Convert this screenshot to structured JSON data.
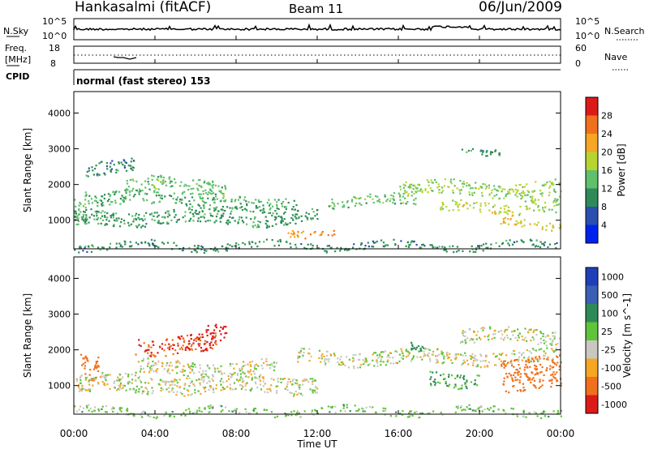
{
  "header": {
    "station": "Hankasalmi (fitACF)",
    "beam": "Beam 11",
    "date": "06/Jun/2009"
  },
  "noise_panel": {
    "left_label": "N.Sky",
    "right_label": "N.Search",
    "left_ticks": [
      "10^5",
      "10^0"
    ],
    "right_ticks": [
      "10^5",
      "10^0"
    ]
  },
  "freq_panel": {
    "left_label_line1": "Freq.",
    "left_label_line2": "[MHz]",
    "right_label": "Nave",
    "left_ticks": [
      "18",
      "8"
    ],
    "right_ticks": [
      "60",
      "0"
    ]
  },
  "cpid": {
    "label": "CPID",
    "mode": "normal (fast stereo) 153"
  },
  "power_panel": {
    "ylabel": "Slant Range [km]",
    "yticks": [
      "1000",
      "2000",
      "3000",
      "4000"
    ],
    "colorbar_label": "Power [dB]",
    "colorbar_ticks": [
      "4",
      "8",
      "12",
      "16",
      "20",
      "24",
      "28"
    ],
    "colorbar_colors": [
      "#0022ee",
      "#2a4fb0",
      "#2e8b57",
      "#5fc16b",
      "#b8d430",
      "#f5a623",
      "#f0701c",
      "#dd1a1a"
    ]
  },
  "velocity_panel": {
    "ylabel": "Slant Range [km]",
    "yticks": [
      "1000",
      "2000",
      "3000",
      "4000"
    ],
    "colorbar_label": "Velocity [m s^-1]",
    "colorbar_ticks": [
      "1000",
      "500",
      "100",
      "25",
      "-25",
      "-100",
      "-500",
      "-1000"
    ],
    "colorbar_colors": [
      "#1f3fb8",
      "#3a5fb4",
      "#2e8b57",
      "#5fc43a",
      "#c8c8c0",
      "#f5a623",
      "#f0701c",
      "#dd1a1a"
    ]
  },
  "xaxis": {
    "label": "Time UT",
    "ticks": [
      "00:00",
      "04:00",
      "08:00",
      "12:00",
      "16:00",
      "20:00",
      "00:00"
    ]
  },
  "chart_data": [
    {
      "type": "heatmap",
      "title": "Power",
      "xlabel": "Time UT",
      "ylabel": "Slant Range [km]",
      "xlim": [
        0,
        24
      ],
      "ylim": [
        200,
        4600
      ],
      "value_range": [
        0,
        30
      ],
      "units": "dB",
      "bands": [
        {
          "t0": 0.0,
          "t1": 0.6,
          "r0": 900,
          "r1": 1600,
          "level": 12
        },
        {
          "t0": 0.5,
          "t1": 3.5,
          "r0": 1500,
          "r1": 1900,
          "level": 10
        },
        {
          "t0": 0.5,
          "t1": 3.0,
          "r0": 2300,
          "r1": 2700,
          "level": 8
        },
        {
          "t0": 2.5,
          "t1": 7.5,
          "r0": 1700,
          "r1": 2200,
          "level": 12
        },
        {
          "t0": 3.5,
          "t1": 8.0,
          "r0": 1400,
          "r1": 1700,
          "level": 10
        },
        {
          "t0": 0.0,
          "t1": 12.0,
          "r0": 900,
          "r1": 1300,
          "level": 9
        },
        {
          "t0": 8.0,
          "t1": 11.0,
          "r0": 1300,
          "r1": 1700,
          "level": 10
        },
        {
          "t0": 10.5,
          "t1": 13.0,
          "r0": 600,
          "r1": 800,
          "level": 22
        },
        {
          "t0": 12.5,
          "t1": 17.0,
          "r0": 1400,
          "r1": 1700,
          "level": 12
        },
        {
          "t0": 16.0,
          "t1": 24.0,
          "r0": 1700,
          "r1": 2100,
          "level": 14
        },
        {
          "t0": 18.0,
          "t1": 22.0,
          "r0": 1200,
          "r1": 1500,
          "level": 16
        },
        {
          "t0": 21.0,
          "t1": 24.0,
          "r0": 800,
          "r1": 1000,
          "level": 18
        },
        {
          "t0": 22.0,
          "t1": 24.0,
          "r0": 1300,
          "r1": 1800,
          "level": 14
        },
        {
          "t0": 19.0,
          "t1": 21.0,
          "r0": 2900,
          "r1": 3100,
          "level": 8
        },
        {
          "t0": 0.0,
          "t1": 24.0,
          "r0": 200,
          "r1": 400,
          "level": 8
        }
      ]
    },
    {
      "type": "heatmap",
      "title": "Velocity",
      "xlabel": "Time UT",
      "ylabel": "Slant Range [km]",
      "xlim": [
        0,
        24
      ],
      "ylim": [
        200,
        4600
      ],
      "value_range": [
        -1000,
        1000
      ],
      "units": "m s^-1",
      "bands": [
        {
          "t0": 0.3,
          "t1": 1.2,
          "r0": 1200,
          "r1": 1900,
          "level": -400
        },
        {
          "t0": 3.0,
          "t1": 7.0,
          "r0": 1900,
          "r1": 2400,
          "level": -500
        },
        {
          "t0": 6.5,
          "t1": 7.5,
          "r0": 2300,
          "r1": 2800,
          "level": -600
        },
        {
          "t0": 0.0,
          "t1": 12.0,
          "r0": 800,
          "r1": 1300,
          "level": 0
        },
        {
          "t0": 3.0,
          "t1": 10.0,
          "r0": 1300,
          "r1": 1700,
          "level": 0
        },
        {
          "t0": 11.0,
          "t1": 24.0,
          "r0": 1600,
          "r1": 2000,
          "level": 0
        },
        {
          "t0": 17.5,
          "t1": 20.0,
          "r0": 1000,
          "r1": 1400,
          "level": 100
        },
        {
          "t0": 16.5,
          "t1": 17.2,
          "r0": 2000,
          "r1": 2300,
          "level": 150
        },
        {
          "t0": 21.0,
          "t1": 24.0,
          "r0": 900,
          "r1": 1800,
          "level": -300
        },
        {
          "t0": 19.0,
          "t1": 24.0,
          "r0": 2200,
          "r1": 2600,
          "level": 0
        },
        {
          "t0": 0.0,
          "t1": 24.0,
          "r0": 200,
          "r1": 400,
          "level": 50
        }
      ]
    }
  ]
}
